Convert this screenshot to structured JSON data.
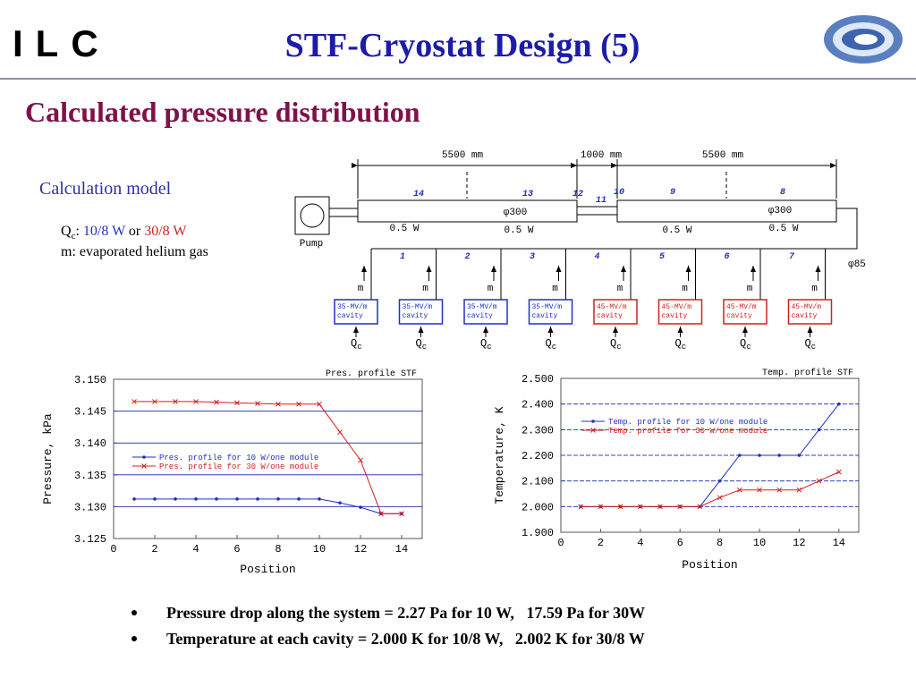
{
  "header": {
    "logo": "ILC",
    "title": "STF-Cryostat Design (5)"
  },
  "subtitle": "Calculated pressure distribution",
  "model": {
    "heading": "Calculation model",
    "qc_parts": [
      "Q",
      "c",
      ":"
    ],
    "load_a": "10/8 W",
    "conj": "or",
    "load_b": "30/8 W",
    "note": "m: evaporated helium gas"
  },
  "diagram": {
    "dimensions": [
      "5500 mm",
      "1000 mm",
      "5500 mm"
    ],
    "sections": [
      "14",
      "13",
      "12",
      "11",
      "10",
      "9",
      "8"
    ],
    "diameters": [
      "φ300",
      "φ300",
      "φ85"
    ],
    "heat_loads": [
      "0.5 W",
      "0.5 W",
      "0.5 W",
      "0.5 W"
    ],
    "pump": "Pump",
    "branches": [
      "1",
      "2",
      "3",
      "4",
      "5",
      "6",
      "7"
    ],
    "flow": [
      "m",
      "m",
      "m",
      "m",
      "m",
      "m",
      "m",
      "m"
    ],
    "cavities": [
      {
        "line1": "35-MV/m",
        "line2": "cavity",
        "color": "#2030c0"
      },
      {
        "line1": "35-MV/m",
        "line2": "cavity",
        "color": "#2030c0"
      },
      {
        "line1": "35-MV/m",
        "line2": "cavity",
        "color": "#2030c0"
      },
      {
        "line1": "35-MV/m",
        "line2": "cavity",
        "color": "#2030c0"
      },
      {
        "line1": "45-MV/m",
        "line2": "cavity",
        "color": "#d02020"
      },
      {
        "line1": "45-MV/m",
        "line2": "cavity",
        "color": "#d02020"
      },
      {
        "line1": "45-MV/m",
        "line2": "cavity",
        "color": "#d02020"
      },
      {
        "line1": "45-MV/m",
        "line2": "cavity",
        "color": "#d02020"
      }
    ],
    "cavity_heat": [
      {
        "base": "Q",
        "sub": "c"
      },
      {
        "base": "Q",
        "sub": "c"
      },
      {
        "base": "Q",
        "sub": "c"
      },
      {
        "base": "Q",
        "sub": "c"
      },
      {
        "base": "Q",
        "sub": "c"
      },
      {
        "base": "Q",
        "sub": "c"
      },
      {
        "base": "Q",
        "sub": "c"
      },
      {
        "base": "Q",
        "sub": "c"
      }
    ]
  },
  "chart_data": [
    {
      "type": "line",
      "title": "Pres. profile STF",
      "x_label": "Position",
      "y_label": "Pressure, kPa",
      "x": [
        1,
        2,
        3,
        4,
        5,
        6,
        7,
        8,
        9,
        10,
        11,
        12,
        13,
        14
      ],
      "xlim": [
        0,
        15
      ],
      "xticks": [
        0,
        2,
        4,
        6,
        8,
        10,
        12,
        14
      ],
      "ylim": [
        3.125,
        3.15
      ],
      "yticks": [
        {
          "value": 3.125,
          "label": "3.125"
        },
        {
          "value": 3.13,
          "label": "3.130"
        },
        {
          "value": 3.135,
          "label": "3.135"
        },
        {
          "value": 3.14,
          "label": "3.140"
        },
        {
          "value": 3.145,
          "label": "3.145"
        },
        {
          "value": 3.15,
          "label": "3.150"
        }
      ],
      "grid": true,
      "grid_color": "#3040c0",
      "grid_style": "solid",
      "series": [
        {
          "name": "Pres. profile for 10 W/one module",
          "color": "#2030c0",
          "marker": "circle",
          "values": [
            3.1312,
            3.1312,
            3.1312,
            3.1312,
            3.1312,
            3.1312,
            3.1312,
            3.1312,
            3.1312,
            3.1312,
            3.1306,
            3.1299,
            3.1289,
            3.1289
          ]
        },
        {
          "name": "Pres. profile for 30 W/one module",
          "color": "#d02020",
          "marker": "x",
          "values": [
            3.1465,
            3.1465,
            3.1465,
            3.1465,
            3.1464,
            3.1463,
            3.1462,
            3.1461,
            3.1461,
            3.1461,
            3.1417,
            3.1373,
            3.1289,
            3.1289
          ]
        }
      ]
    },
    {
      "type": "line",
      "title": "Temp. profile STF",
      "x_label": "Position",
      "y_label": "Temperature, K",
      "x": [
        1,
        2,
        3,
        4,
        5,
        6,
        7,
        8,
        9,
        10,
        11,
        12,
        13,
        14
      ],
      "xlim": [
        0,
        15
      ],
      "xticks": [
        0,
        2,
        4,
        6,
        8,
        10,
        12,
        14
      ],
      "ylim": [
        1.9,
        2.5
      ],
      "yticks": [
        {
          "value": 1.9,
          "label": "1.900"
        },
        {
          "value": 2.0,
          "label": "2.000"
        },
        {
          "value": 2.1,
          "label": "2.100"
        },
        {
          "value": 2.2,
          "label": "2.200"
        },
        {
          "value": 2.3,
          "label": "2.300"
        },
        {
          "value": 2.4,
          "label": "2.400"
        },
        {
          "value": 2.5,
          "label": "2.500"
        }
      ],
      "grid": true,
      "grid_color": "#3040c0",
      "grid_style": "dashed",
      "series": [
        {
          "name": "Temp. profile for 10 W/one module",
          "color": "#2030c0",
          "marker": "circle",
          "values": [
            2.0,
            2.0,
            2.0,
            2.0,
            2.0,
            2.0,
            2.0,
            2.1,
            2.2,
            2.2,
            2.2,
            2.2,
            2.3,
            2.4
          ]
        },
        {
          "name": "Temp. profile for 30 W/one module",
          "color": "#d02020",
          "marker": "x",
          "values": [
            2.0,
            2.0,
            2.0,
            2.0,
            2.0,
            2.0,
            2.0,
            2.035,
            2.065,
            2.065,
            2.065,
            2.065,
            2.1,
            2.135
          ]
        }
      ]
    }
  ],
  "bullets": [
    "Pressure drop along the system = 2.27 Pa for 10 W,   17.59 Pa for 30W",
    "Temperature at each cavity = 2.000 K for 10/8 W,   2.002 K for 30/8 W"
  ]
}
